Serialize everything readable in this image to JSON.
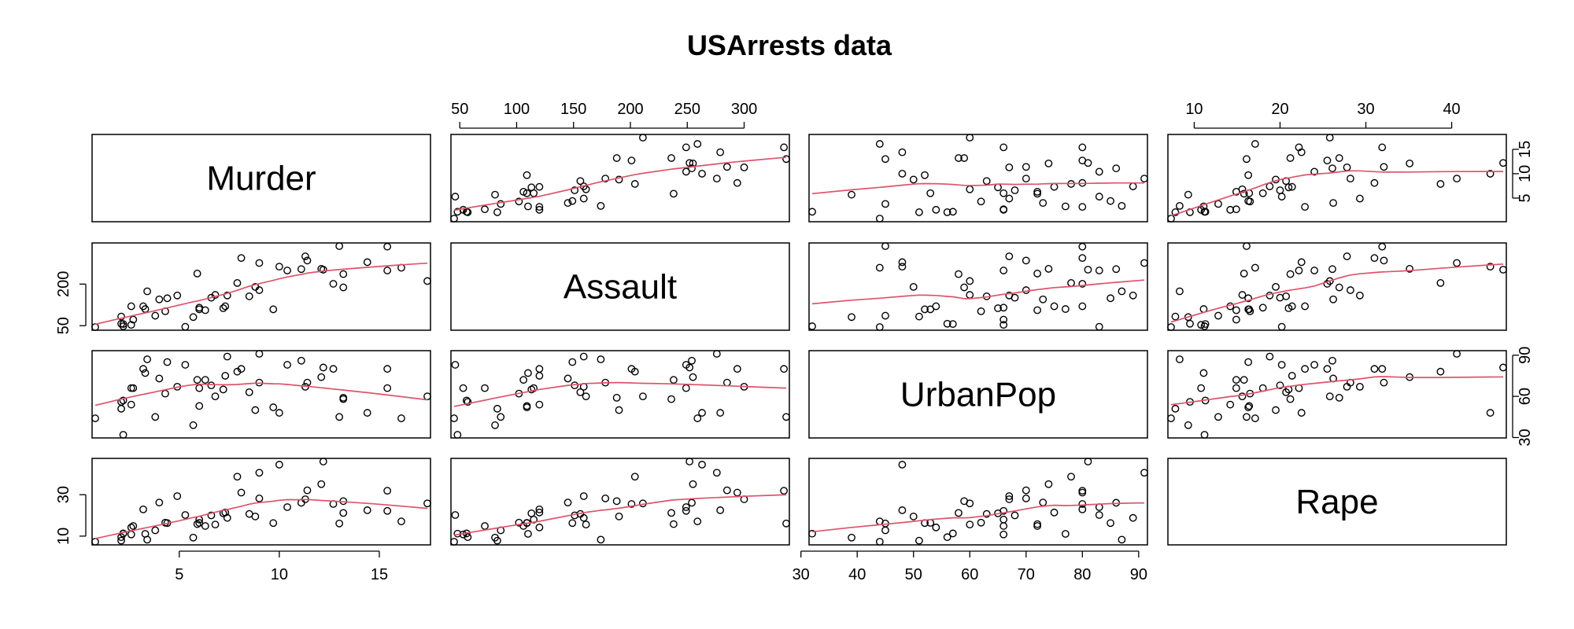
{
  "chart_data": {
    "type": "scatter-matrix",
    "title": "USArrests data",
    "variables": [
      "Murder",
      "Assault",
      "UrbanPop",
      "Rape"
    ],
    "ranges": {
      "Murder": [
        0.8,
        17.4
      ],
      "Assault": [
        45,
        337
      ],
      "UrbanPop": [
        32,
        91
      ],
      "Rape": [
        7.3,
        46
      ]
    },
    "ticks": {
      "Murder": [
        5,
        10,
        15
      ],
      "Assault": [
        50,
        100,
        150,
        200,
        250,
        300
      ],
      "UrbanPop": [
        30,
        40,
        50,
        60,
        70,
        80,
        90
      ],
      "Rape": [
        10,
        20,
        30,
        40
      ]
    },
    "ticks_side": {
      "Murder": [
        5,
        10,
        15
      ],
      "Assault": [
        50,
        200
      ],
      "UrbanPop": [
        30,
        60,
        90
      ],
      "Rape": [
        10,
        30
      ]
    },
    "smoother_color": "#df536b",
    "point_style": "open circle",
    "observations": [
      [
        13.2,
        236,
        58,
        21.2
      ],
      [
        10,
        263,
        48,
        44.5
      ],
      [
        8.1,
        294,
        80,
        31
      ],
      [
        8.8,
        190,
        50,
        19.5
      ],
      [
        9,
        276,
        91,
        40.6
      ],
      [
        7.9,
        204,
        78,
        38.7
      ],
      [
        3.3,
        110,
        77,
        11.1
      ],
      [
        5.9,
        238,
        72,
        15.8
      ],
      [
        15.4,
        335,
        80,
        31.9
      ],
      [
        17.4,
        211,
        60,
        25.8
      ],
      [
        5.3,
        46,
        83,
        20.2
      ],
      [
        2.6,
        120,
        54,
        14.2
      ],
      [
        10.4,
        249,
        83,
        24
      ],
      [
        7.2,
        113,
        65,
        21
      ],
      [
        2.2,
        56,
        57,
        11.3
      ],
      [
        6,
        115,
        66,
        18
      ],
      [
        9.7,
        109,
        52,
        16.3
      ],
      [
        15.4,
        249,
        66,
        22.2
      ],
      [
        2.1,
        83,
        51,
        7.8
      ],
      [
        11.3,
        300,
        67,
        27.8
      ],
      [
        4.4,
        149,
        85,
        16.3
      ],
      [
        12.1,
        255,
        74,
        35.1
      ],
      [
        2.7,
        72,
        66,
        14.9
      ],
      [
        16.1,
        259,
        44,
        17.1
      ],
      [
        9,
        178,
        70,
        28.2
      ],
      [
        6,
        109,
        53,
        16.4
      ],
      [
        4.3,
        102,
        62,
        16.5
      ],
      [
        12.2,
        252,
        81,
        46
      ],
      [
        2.1,
        57,
        56,
        9.5
      ],
      [
        7.4,
        159,
        89,
        18.8
      ],
      [
        11.4,
        285,
        70,
        32.1
      ],
      [
        11.1,
        254,
        86,
        26.1
      ],
      [
        13,
        337,
        45,
        16.1
      ],
      [
        0.8,
        45,
        44,
        7.3
      ],
      [
        7.3,
        120,
        75,
        21.4
      ],
      [
        6.6,
        151,
        68,
        20
      ],
      [
        4.9,
        159,
        67,
        29.3
      ],
      [
        6.3,
        106,
        72,
        14.9
      ],
      [
        3.4,
        174,
        87,
        8.3
      ],
      [
        14.4,
        279,
        48,
        22.5
      ],
      [
        3.8,
        86,
        45,
        12.8
      ],
      [
        13.2,
        188,
        59,
        26.9
      ],
      [
        12.7,
        201,
        80,
        25.5
      ],
      [
        3.2,
        120,
        80,
        22.9
      ],
      [
        2.2,
        48,
        32,
        11.2
      ],
      [
        8.5,
        156,
        63,
        20.7
      ],
      [
        4,
        145,
        73,
        26.2
      ],
      [
        5.7,
        81,
        39,
        9.3
      ],
      [
        2.6,
        53,
        66,
        10.8
      ],
      [
        6.8,
        161,
        60,
        15.6
      ]
    ]
  }
}
